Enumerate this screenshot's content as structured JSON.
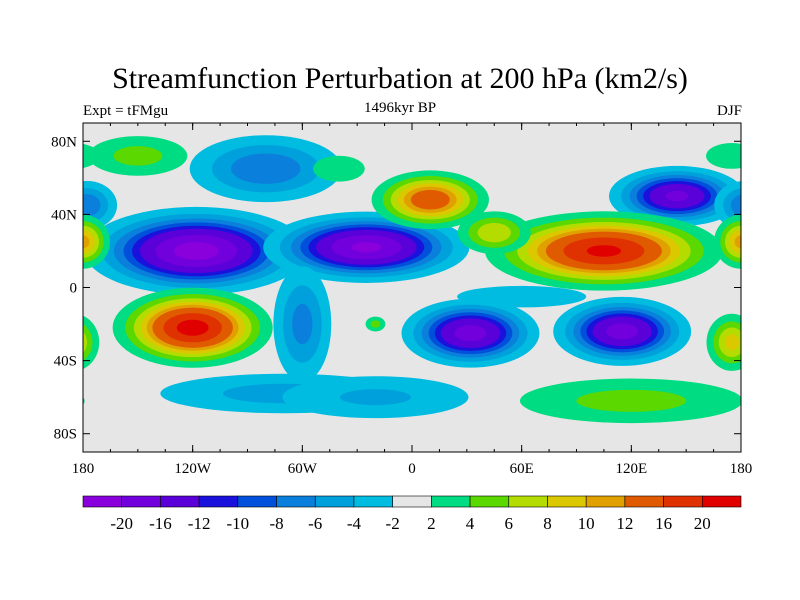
{
  "chart_data": {
    "type": "heatmap",
    "title": "Streamfunction Perturbation at 200 hPa (km2/s)",
    "left_subtitle": "Expt = tFMgu",
    "center_subtitle": "1496kyr BP",
    "right_subtitle": "DJF",
    "xlim": [
      -180,
      180
    ],
    "ylim": [
      -90,
      90
    ],
    "x_ticks": [
      {
        "v": -180,
        "label": "180"
      },
      {
        "v": -120,
        "label": "120W"
      },
      {
        "v": -60,
        "label": "60W"
      },
      {
        "v": 0,
        "label": "0"
      },
      {
        "v": 60,
        "label": "60E"
      },
      {
        "v": 120,
        "label": "120E"
      },
      {
        "v": 180,
        "label": "180"
      }
    ],
    "y_ticks": [
      {
        "v": 80,
        "label": "80N"
      },
      {
        "v": 40,
        "label": "40N"
      },
      {
        "v": 0,
        "label": "0"
      },
      {
        "v": -40,
        "label": "40S"
      },
      {
        "v": -80,
        "label": "80S"
      }
    ],
    "colorbar": {
      "levels": [
        "-20",
        "-16",
        "-12",
        "-10",
        "-8",
        "-6",
        "-4",
        "-2",
        "2",
        "4",
        "6",
        "8",
        "10",
        "12",
        "16",
        "20"
      ],
      "level_values": [
        -20,
        -16,
        -12,
        -10,
        -8,
        -6,
        -4,
        -2,
        2,
        4,
        6,
        8,
        10,
        12,
        16,
        20
      ],
      "colors": [
        "#8a00dc",
        "#7200dc",
        "#5a00d8",
        "#1a12dc",
        "#0050dc",
        "#0a80dc",
        "#00a0dc",
        "#00bce0",
        "#e6e6e6",
        "#00dc82",
        "#5ad800",
        "#b4dc00",
        "#dcc800",
        "#e0a000",
        "#e05a00",
        "#e03200",
        "#e00000"
      ]
    },
    "anomaly_centers": [
      {
        "lon": -118,
        "lat": 20,
        "peak": -22,
        "slon": 28,
        "slat": 11
      },
      {
        "lon": -25,
        "lat": 22,
        "peak": -21,
        "slon": 26,
        "slat": 9
      },
      {
        "lon": 32,
        "lat": -25,
        "peak": -18,
        "slon": 18,
        "slat": 9
      },
      {
        "lon": 115,
        "lat": -24,
        "peak": -18,
        "slon": 18,
        "slat": 9
      },
      {
        "lon": 145,
        "lat": 50,
        "peak": -17,
        "slon": 18,
        "slat": 8
      },
      {
        "lon": -80,
        "lat": 65,
        "peak": -8,
        "slon": 25,
        "slat": 11
      },
      {
        "lon": -178,
        "lat": 45,
        "peak": -8,
        "slon": 10,
        "slat": 8
      },
      {
        "lon": -60,
        "lat": -20,
        "peak": -7,
        "slon": 10,
        "slat": 20
      },
      {
        "lon": -70,
        "lat": -58,
        "peak": -5,
        "slon": 50,
        "slat": 8
      },
      {
        "lon": -20,
        "lat": -60,
        "peak": -4.5,
        "slon": 40,
        "slat": 9
      },
      {
        "lon": 60,
        "lat": -5,
        "peak": -4,
        "slon": 30,
        "slat": 5
      },
      {
        "lon": -120,
        "lat": -22,
        "peak": 22,
        "slon": 20,
        "slat": 10
      },
      {
        "lon": 10,
        "lat": 48,
        "peak": 15,
        "slon": 16,
        "slat": 8
      },
      {
        "lon": 105,
        "lat": 20,
        "peak": 21,
        "slon": 30,
        "slat": 10
      },
      {
        "lon": 45,
        "lat": 30,
        "peak": 8,
        "slon": 12,
        "slat": 7
      },
      {
        "lon": -180,
        "lat": 25,
        "peak": 11,
        "slon": 8,
        "slat": 8
      },
      {
        "lon": 175,
        "lat": -30,
        "peak": 9,
        "slon": 8,
        "slat": 9
      },
      {
        "lon": -150,
        "lat": 72,
        "peak": 5,
        "slon": 20,
        "slat": 8
      },
      {
        "lon": -40,
        "lat": 65,
        "peak": 4,
        "slon": 12,
        "slat": 6
      },
      {
        "lon": 175,
        "lat": 72,
        "peak": 4,
        "slon": 12,
        "slat": 6
      },
      {
        "lon": 120,
        "lat": -62,
        "peak": 5,
        "slon": 45,
        "slat": 9
      },
      {
        "lon": -20,
        "lat": -20,
        "peak": 5,
        "slon": 4,
        "slat": 3
      }
    ]
  }
}
